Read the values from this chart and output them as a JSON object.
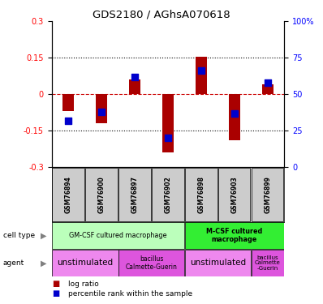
{
  "title": "GDS2180 / AGhsA070618",
  "samples": [
    "GSM76894",
    "GSM76900",
    "GSM76897",
    "GSM76902",
    "GSM76898",
    "GSM76903",
    "GSM76899"
  ],
  "log_ratios": [
    -0.07,
    -0.12,
    0.06,
    -0.24,
    0.155,
    -0.19,
    0.04
  ],
  "percentile_ranks": [
    32,
    38,
    62,
    20,
    66,
    37,
    58
  ],
  "ylim_left": [
    -0.3,
    0.3
  ],
  "ylim_right": [
    0,
    100
  ],
  "yticks_left": [
    -0.3,
    -0.15,
    0,
    0.15,
    0.3
  ],
  "yticks_right": [
    0,
    25,
    50,
    75,
    100
  ],
  "bar_color": "#aa0000",
  "square_color": "#0000cc",
  "background_color": "#ffffff",
  "bar_width": 0.35,
  "square_size": 30,
  "gm_color": "#bbffbb",
  "mcsf_color": "#33ee33",
  "unstim_color": "#ee88ee",
  "bcg_color": "#dd55dd",
  "gsm_bg_color": "#cccccc"
}
